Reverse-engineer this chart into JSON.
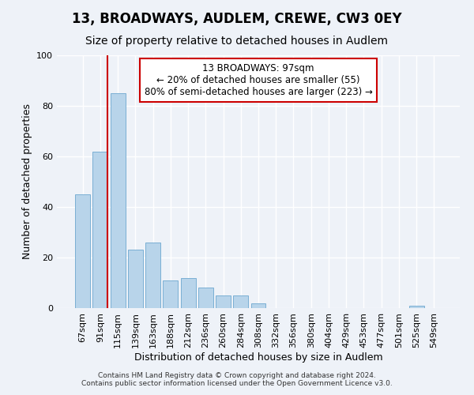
{
  "title": "13, BROADWAYS, AUDLEM, CREWE, CW3 0EY",
  "subtitle": "Size of property relative to detached houses in Audlem",
  "xlabel": "Distribution of detached houses by size in Audlem",
  "ylabel": "Number of detached properties",
  "bar_labels": [
    "67sqm",
    "91sqm",
    "115sqm",
    "139sqm",
    "163sqm",
    "188sqm",
    "212sqm",
    "236sqm",
    "260sqm",
    "284sqm",
    "308sqm",
    "332sqm",
    "356sqm",
    "380sqm",
    "404sqm",
    "429sqm",
    "453sqm",
    "477sqm",
    "501sqm",
    "525sqm",
    "549sqm"
  ],
  "bar_values": [
    45,
    62,
    85,
    23,
    26,
    11,
    12,
    8,
    5,
    5,
    2,
    0,
    0,
    0,
    0,
    0,
    0,
    0,
    0,
    1,
    0
  ],
  "bar_color": "#b8d4ea",
  "bar_edge_color": "#7aafd4",
  "vline_color": "#cc0000",
  "annotation_title": "13 BROADWAYS: 97sqm",
  "annotation_line1": "← 20% of detached houses are smaller (55)",
  "annotation_line2": "80% of semi-detached houses are larger (223) →",
  "annotation_box_color": "#cc0000",
  "ylim": [
    0,
    100
  ],
  "yticks": [
    0,
    20,
    40,
    60,
    80,
    100
  ],
  "footer1": "Contains HM Land Registry data © Crown copyright and database right 2024.",
  "footer2": "Contains public sector information licensed under the Open Government Licence v3.0.",
  "bg_color": "#eef2f8",
  "plot_bg_color": "#eef2f8",
  "title_fontsize": 12,
  "subtitle_fontsize": 10,
  "label_fontsize": 9,
  "tick_fontsize": 8,
  "footer_fontsize": 6.5
}
